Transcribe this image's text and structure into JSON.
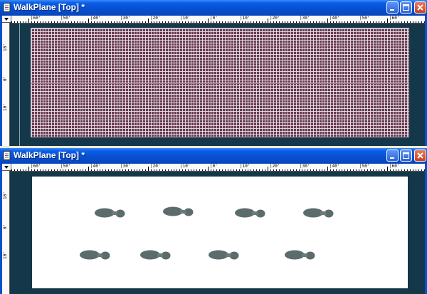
{
  "windows": [
    {
      "id": "top",
      "title": "WalkPlane [Top] *",
      "ruler_h_labels": [
        "|60'",
        "|50'",
        "|40'",
        "|30'",
        "|20'",
        "|10'",
        "|0'",
        "|10'",
        "|20'",
        "|30'",
        "|40'",
        "|50'",
        "|60'"
      ],
      "ruler_v_labels": [
        "10'",
        "0'",
        "10'"
      ]
    },
    {
      "id": "bottom",
      "title": "WalkPlane [Top] *",
      "ruler_h_labels": [
        "|60'",
        "|50'",
        "|40'",
        "|30'",
        "|20'",
        "|10'",
        "|0'",
        "|10'",
        "|20'",
        "|30'",
        "|40'",
        "|50'",
        "|60'"
      ],
      "ruler_v_labels": [
        "10'",
        "0'",
        "10'"
      ]
    }
  ],
  "colors": {
    "title_gradient": "#0a5ee9",
    "viewport_bg": "#14374a",
    "grid_bg": "#6b3a52",
    "plane_white": "#ffffff",
    "footprint": "#5c6b6b"
  },
  "icons": {
    "title_icon": "document-icon",
    "minimize": "minimize-icon",
    "maximize": "maximize-icon",
    "close": "close-icon"
  }
}
